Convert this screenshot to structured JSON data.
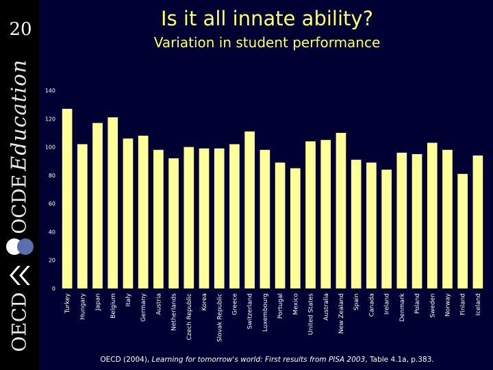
{
  "slide": {
    "number": "20",
    "title": "Is it all innate ability?",
    "subtitle": "Variation in student performance"
  },
  "branding": {
    "education": "Education",
    "ocde": "OCDE",
    "oecd": "OECD"
  },
  "colors": {
    "background": "#000033",
    "sidebar": "#000000",
    "title": "#ffff66",
    "bar": "#ffff99",
    "axis_text": "#ffffff",
    "logo_white": "#ffffff",
    "logo_blue": "#5a6fb0"
  },
  "source": {
    "prefix": "OECD (2004), ",
    "italic": "Learning for tomorrow's world: First results from PISA 2003",
    "suffix": ", Table 4.1a,  p.383."
  },
  "chart_data": {
    "type": "bar",
    "title": "",
    "xlabel": "",
    "ylabel": "",
    "ylim": [
      0,
      140
    ],
    "yticks": [
      0,
      20,
      40,
      60,
      80,
      100,
      120,
      140
    ],
    "grid": false,
    "categories": [
      "Turkey",
      "Hungary",
      "Japan",
      "Belgium",
      "Italy",
      "Germany",
      "Austria",
      "Netherlands",
      "Czech Republic",
      "Korea",
      "Slovak Republic",
      "Greece",
      "Switzerland",
      "Luxembourg",
      "Portugal",
      "Mexico",
      "United States",
      "Australia",
      "New Zealand",
      "Spain",
      "Canada",
      "Ireland",
      "Denmark",
      "Poland",
      "Sweden",
      "Norway",
      "Finland",
      "Iceland"
    ],
    "values": [
      127,
      102,
      117,
      121,
      106,
      108,
      98,
      92,
      100,
      99,
      99,
      102,
      111,
      98,
      89,
      85,
      104,
      105,
      110,
      91,
      89,
      84,
      96,
      95,
      103,
      98,
      81,
      94
    ]
  }
}
